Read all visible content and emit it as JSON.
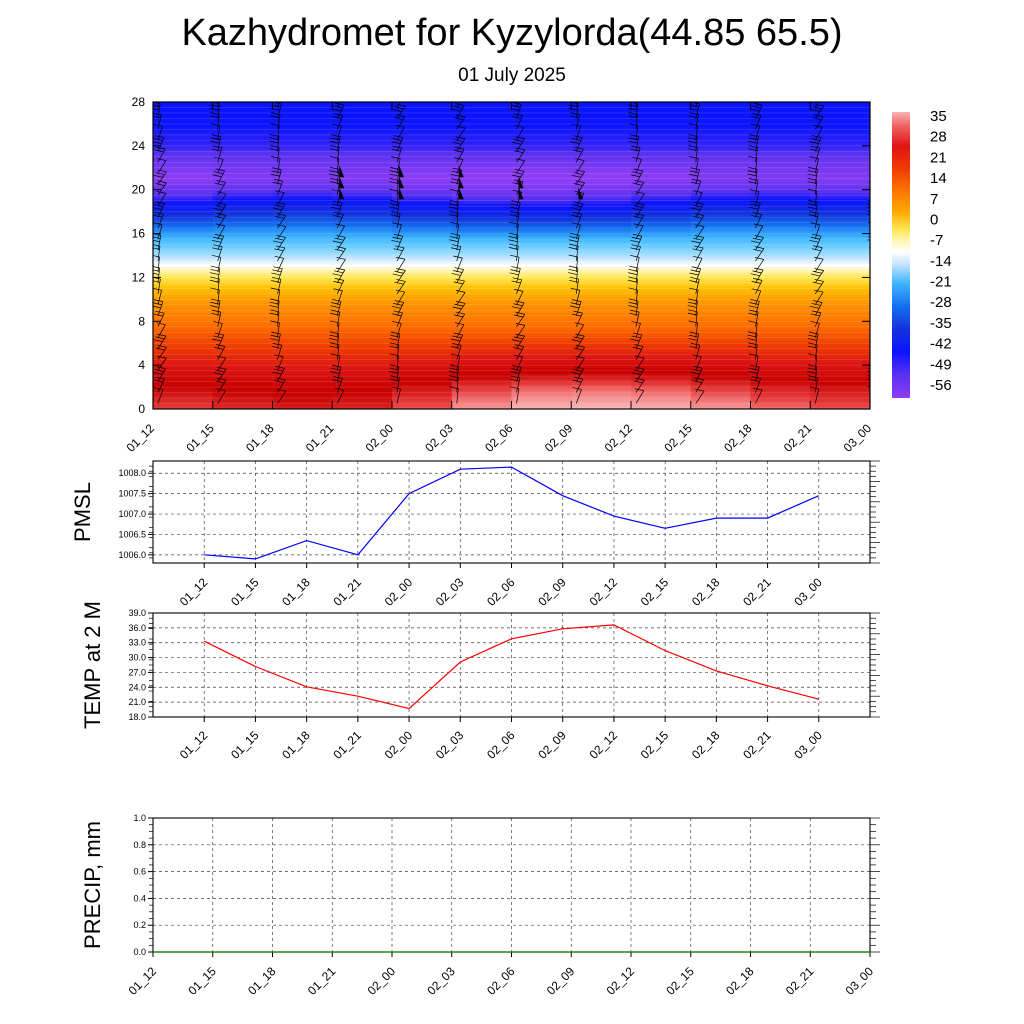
{
  "title": "Kazhydromet for Kyzylorda(44.85 65.5)",
  "subtitle": "01 July 2025",
  "chart_data": [
    {
      "type": "heatmap",
      "title": "",
      "xlabel": "",
      "ylabel": "",
      "x": [
        "01_12",
        "01_15",
        "01_18",
        "01_21",
        "02_00",
        "02_03",
        "02_06",
        "02_09",
        "02_12",
        "02_15",
        "02_18",
        "02_21",
        "03_00"
      ],
      "yticks": [
        0,
        4,
        8,
        12,
        16,
        20,
        24,
        28
      ],
      "ylim": [
        0,
        28
      ],
      "colorbar": {
        "labels": [
          35,
          28,
          21,
          14,
          7,
          0,
          -7,
          -14,
          -21,
          -28,
          -35,
          -42,
          -49,
          -56
        ],
        "range": [
          -60,
          38
        ]
      },
      "temperature_profile": {
        "heights": [
          0,
          2,
          4,
          6,
          8,
          10,
          12,
          13,
          14,
          16,
          18,
          20,
          21,
          22,
          24,
          26,
          28
        ],
        "values": [
          29,
          26,
          21,
          15,
          9,
          2,
          -8,
          -14,
          -22,
          -34,
          -46,
          -56,
          -60,
          -58,
          -52,
          -50,
          -50
        ]
      },
      "surface_warm_anomaly": [
        2,
        1,
        0,
        0,
        2,
        5,
        8,
        9,
        9,
        8,
        6,
        4,
        3
      ],
      "wind_barbs": true
    },
    {
      "type": "line",
      "ylabel": "PMSL",
      "x": [
        "01_12",
        "01_15",
        "01_18",
        "01_21",
        "02_00",
        "02_03",
        "02_06",
        "02_09",
        "02_12",
        "02_15",
        "02_18",
        "02_21",
        "03_00"
      ],
      "series": [
        {
          "values": [
            1006.0,
            1005.9,
            1006.35,
            1006.0,
            1007.5,
            1008.1,
            1008.15,
            1007.45,
            1006.95,
            1006.65,
            1006.9,
            1006.9,
            1007.45
          ],
          "color": "#0000ff"
        }
      ],
      "ylim": [
        1005.8,
        1008.3
      ],
      "yticks": [
        "1006.0",
        "1006.5",
        "1007.0",
        "1007.5",
        "1008.0"
      ],
      "grid": true
    },
    {
      "type": "line",
      "ylabel": "TEMP at 2 M",
      "x": [
        "01_12",
        "01_15",
        "01_18",
        "01_21",
        "02_00",
        "02_03",
        "02_06",
        "02_09",
        "02_12",
        "02_15",
        "02_18",
        "02_21",
        "03_00"
      ],
      "series": [
        {
          "values": [
            33.3,
            28.2,
            24.1,
            22.2,
            19.7,
            29.1,
            33.8,
            35.8,
            36.6,
            31.4,
            27.3,
            24.3,
            21.6
          ],
          "color": "#ff0000"
        }
      ],
      "ylim": [
        18.0,
        39.0
      ],
      "yticks": [
        "18.0",
        "21.0",
        "24.0",
        "27.0",
        "30.0",
        "33.0",
        "36.0",
        "39.0"
      ],
      "grid": true
    },
    {
      "type": "line",
      "ylabel": "PRECIP, mm",
      "x": [
        "01_12",
        "01_15",
        "01_18",
        "01_21",
        "02_00",
        "02_03",
        "02_06",
        "02_09",
        "02_12",
        "02_15",
        "02_18",
        "02_21",
        "03_00"
      ],
      "series": [
        {
          "values": [
            0,
            0,
            0,
            0,
            0,
            0,
            0,
            0,
            0,
            0,
            0,
            0,
            0
          ],
          "color": "#008000"
        }
      ],
      "ylim": [
        0.0,
        1.0
      ],
      "yticks": [
        "0.0",
        "0.2",
        "0.4",
        "0.6",
        "0.8",
        "1.0"
      ],
      "grid": true
    }
  ]
}
